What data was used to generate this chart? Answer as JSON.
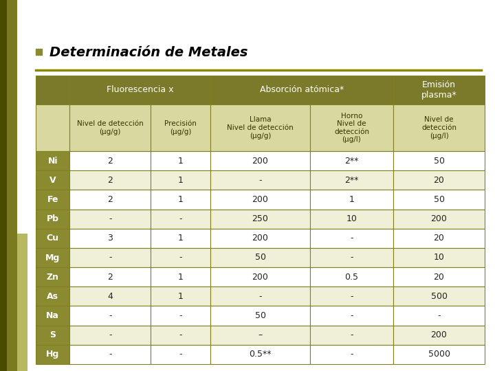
{
  "title": "Determinación de Metales",
  "background_color": "#ffffff",
  "left_bar_color1": "#5a5a00",
  "left_bar_color2": "#8a8a2a",
  "left_bar_color3": "#c8c860",
  "header1_color": "#7a7a2a",
  "header2_color": "#d8d8a0",
  "element_col_color": "#8a8a30",
  "element_text_color": "#ffffff",
  "border_color": "#808020",
  "row_colors": [
    "#ffffff",
    "#f0f0d8"
  ],
  "separator_color": "#8a8a00",
  "bullet_color": "#8a8a30",
  "col_headers_sub": [
    "Nivel de detección\n(μg/g)",
    "Precisión\n(μg/g)",
    "Llama\nNivel de detección\n(μg/g)",
    "Horno\nNivel de\ndetección\n(μg/l)",
    "Nivel de\ndetección\n(μg/l)"
  ],
  "elements": [
    "Ni",
    "V",
    "Fe",
    "Pb",
    "Cu",
    "Mg",
    "Zn",
    "As",
    "Na",
    "S",
    "Hg"
  ],
  "data": [
    [
      "2",
      "1",
      "200",
      "2**",
      "50"
    ],
    [
      "2",
      "1",
      "-",
      "2**",
      "20"
    ],
    [
      "2",
      "1",
      "200",
      "1",
      "50"
    ],
    [
      "-",
      "-",
      "250",
      "10",
      "200"
    ],
    [
      "3",
      "1",
      "200",
      "-",
      "20"
    ],
    [
      "-",
      "-",
      "50",
      "-",
      "10"
    ],
    [
      "2",
      "1",
      "200",
      "0.5",
      "20"
    ],
    [
      "4",
      "1",
      "-",
      "-",
      "500"
    ],
    [
      "-",
      "-",
      "50",
      "-",
      "-"
    ],
    [
      "-",
      "-",
      "–",
      "-",
      "200"
    ],
    [
      "-",
      "-",
      "0.5**",
      "-",
      "5000"
    ]
  ]
}
